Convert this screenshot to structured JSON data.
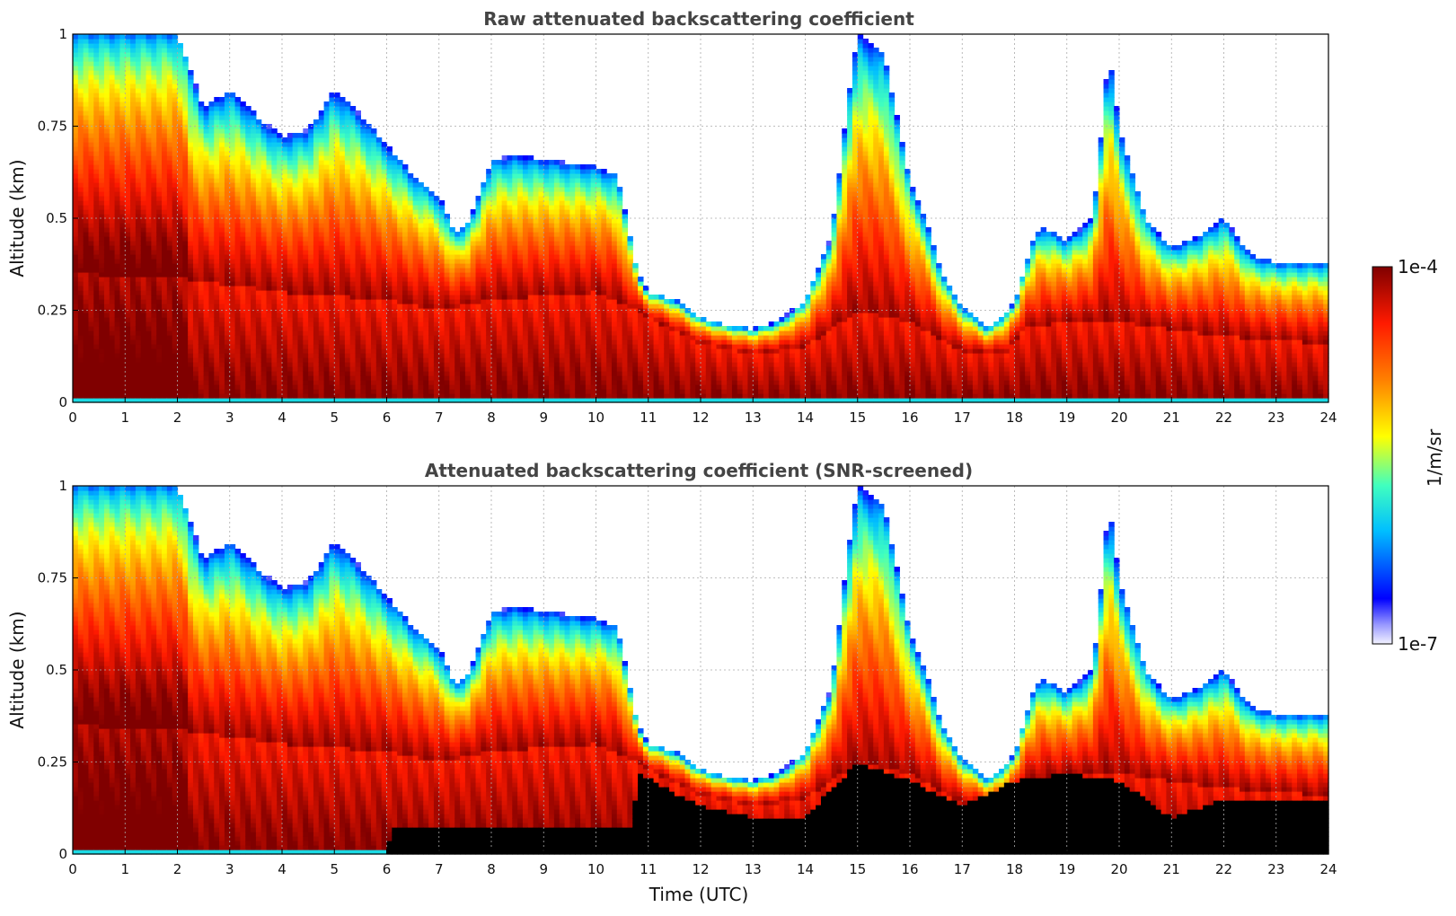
{
  "chart_data": [
    {
      "type": "heatmap",
      "title": "Raw attenuated backscattering coefficient",
      "xlabel": "",
      "ylabel": "Altitude (km)",
      "xlim": [
        0,
        24
      ],
      "ylim": [
        0,
        1
      ],
      "x_ticks": [
        "0",
        "1",
        "2",
        "3",
        "4",
        "5",
        "6",
        "7",
        "8",
        "9",
        "10",
        "11",
        "12",
        "13",
        "14",
        "15",
        "16",
        "17",
        "18",
        "19",
        "20",
        "21",
        "22",
        "23",
        "24"
      ],
      "y_ticks": [
        "0",
        "0.25",
        "0.5",
        "0.75",
        "1"
      ],
      "grid": true,
      "colormap": "jet",
      "color_scale": "log",
      "masked": false,
      "bl_top_km": [
        [
          0,
          1.0
        ],
        [
          1,
          1.0
        ],
        [
          2,
          1.0
        ],
        [
          2.5,
          0.8
        ],
        [
          3,
          0.85
        ],
        [
          3.5,
          0.78
        ],
        [
          4,
          0.72
        ],
        [
          4.5,
          0.74
        ],
        [
          5,
          0.85
        ],
        [
          5.5,
          0.78
        ],
        [
          6,
          0.7
        ],
        [
          6.5,
          0.62
        ],
        [
          7,
          0.56
        ],
        [
          7.3,
          0.46
        ],
        [
          7.6,
          0.5
        ],
        [
          8,
          0.66
        ],
        [
          8.5,
          0.67
        ],
        [
          9,
          0.66
        ],
        [
          9.5,
          0.65
        ],
        [
          10,
          0.64
        ],
        [
          10.4,
          0.62
        ],
        [
          10.8,
          0.35
        ],
        [
          11,
          0.3
        ],
        [
          11.5,
          0.28
        ],
        [
          12,
          0.23
        ],
        [
          12.5,
          0.21
        ],
        [
          13,
          0.2
        ],
        [
          13.5,
          0.22
        ],
        [
          14,
          0.28
        ],
        [
          14.5,
          0.45
        ],
        [
          14.8,
          0.8
        ],
        [
          15,
          1.0
        ],
        [
          15.5,
          0.95
        ],
        [
          16,
          0.6
        ],
        [
          16.3,
          0.5
        ],
        [
          16.6,
          0.35
        ],
        [
          17,
          0.26
        ],
        [
          17.5,
          0.2
        ],
        [
          18,
          0.27
        ],
        [
          18.3,
          0.42
        ],
        [
          18.5,
          0.48
        ],
        [
          19,
          0.44
        ],
        [
          19.5,
          0.5
        ],
        [
          19.8,
          0.95
        ],
        [
          20,
          0.75
        ],
        [
          20.5,
          0.5
        ],
        [
          21,
          0.42
        ],
        [
          21.5,
          0.45
        ],
        [
          22,
          0.5
        ],
        [
          22.5,
          0.4
        ],
        [
          23,
          0.38
        ],
        [
          24,
          0.38
        ]
      ],
      "dense_top_km": [
        [
          0,
          0.35
        ],
        [
          2,
          0.34
        ],
        [
          4,
          0.3
        ],
        [
          6,
          0.28
        ],
        [
          7,
          0.25
        ],
        [
          8,
          0.28
        ],
        [
          10,
          0.3
        ],
        [
          10.8,
          0.25
        ],
        [
          11,
          0.23
        ],
        [
          12,
          0.16
        ],
        [
          13,
          0.13
        ],
        [
          14,
          0.15
        ],
        [
          15,
          0.25
        ],
        [
          16,
          0.22
        ],
        [
          17,
          0.14
        ],
        [
          17.8,
          0.13
        ],
        [
          18.2,
          0.2
        ],
        [
          19,
          0.22
        ],
        [
          20,
          0.22
        ],
        [
          21,
          0.2
        ],
        [
          22,
          0.18
        ],
        [
          24,
          0.16
        ]
      ]
    },
    {
      "type": "heatmap",
      "title": "Attenuated backscattering coefficient (SNR-screened)",
      "xlabel": "Time (UTC)",
      "ylabel": "Altitude (km)",
      "xlim": [
        0,
        24
      ],
      "ylim": [
        0,
        1
      ],
      "x_ticks": [
        "0",
        "1",
        "2",
        "3",
        "4",
        "5",
        "6",
        "7",
        "8",
        "9",
        "10",
        "11",
        "12",
        "13",
        "14",
        "15",
        "16",
        "17",
        "18",
        "19",
        "20",
        "21",
        "22",
        "23",
        "24"
      ],
      "y_ticks": [
        "0",
        "0.25",
        "0.5",
        "0.75",
        "1"
      ],
      "grid": true,
      "colormap": "jet",
      "color_scale": "log",
      "masked": true,
      "mask_color": "#000000",
      "bl_top_km": [
        [
          0,
          1.0
        ],
        [
          1,
          1.0
        ],
        [
          2,
          1.0
        ],
        [
          2.5,
          0.8
        ],
        [
          3,
          0.85
        ],
        [
          3.5,
          0.78
        ],
        [
          4,
          0.72
        ],
        [
          4.5,
          0.74
        ],
        [
          5,
          0.85
        ],
        [
          5.5,
          0.78
        ],
        [
          6,
          0.7
        ],
        [
          6.5,
          0.62
        ],
        [
          7,
          0.56
        ],
        [
          7.3,
          0.46
        ],
        [
          7.6,
          0.5
        ],
        [
          8,
          0.66
        ],
        [
          8.5,
          0.67
        ],
        [
          9,
          0.66
        ],
        [
          9.5,
          0.65
        ],
        [
          10,
          0.64
        ],
        [
          10.4,
          0.62
        ],
        [
          10.8,
          0.35
        ],
        [
          11,
          0.3
        ],
        [
          11.5,
          0.28
        ],
        [
          12,
          0.23
        ],
        [
          12.5,
          0.21
        ],
        [
          13,
          0.2
        ],
        [
          13.5,
          0.22
        ],
        [
          14,
          0.28
        ],
        [
          14.5,
          0.45
        ],
        [
          14.8,
          0.8
        ],
        [
          15,
          1.0
        ],
        [
          15.5,
          0.95
        ],
        [
          16,
          0.6
        ],
        [
          16.3,
          0.5
        ],
        [
          16.6,
          0.35
        ],
        [
          17,
          0.26
        ],
        [
          17.5,
          0.2
        ],
        [
          18,
          0.27
        ],
        [
          18.3,
          0.42
        ],
        [
          18.5,
          0.48
        ],
        [
          19,
          0.44
        ],
        [
          19.5,
          0.5
        ],
        [
          19.8,
          0.95
        ],
        [
          20,
          0.75
        ],
        [
          20.5,
          0.5
        ],
        [
          21,
          0.42
        ],
        [
          21.5,
          0.45
        ],
        [
          22,
          0.5
        ],
        [
          22.5,
          0.4
        ],
        [
          23,
          0.38
        ],
        [
          24,
          0.38
        ]
      ],
      "dense_top_km": [
        [
          0,
          0.35
        ],
        [
          2,
          0.34
        ],
        [
          4,
          0.3
        ],
        [
          6,
          0.28
        ],
        [
          7,
          0.25
        ],
        [
          8,
          0.28
        ],
        [
          10,
          0.3
        ],
        [
          10.8,
          0.25
        ],
        [
          11,
          0.23
        ],
        [
          12,
          0.16
        ],
        [
          13,
          0.13
        ],
        [
          14,
          0.15
        ],
        [
          15,
          0.25
        ],
        [
          16,
          0.22
        ],
        [
          17,
          0.14
        ],
        [
          17.8,
          0.13
        ],
        [
          18.2,
          0.2
        ],
        [
          19,
          0.22
        ],
        [
          20,
          0.22
        ],
        [
          21,
          0.2
        ],
        [
          22,
          0.18
        ],
        [
          24,
          0.16
        ]
      ],
      "mask_top_km": [
        [
          0,
          0
        ],
        [
          6,
          0
        ],
        [
          6.1,
          0.07
        ],
        [
          10.7,
          0.07
        ],
        [
          10.8,
          0.22
        ],
        [
          12,
          0.13
        ],
        [
          13,
          0.1
        ],
        [
          14,
          0.1
        ],
        [
          15,
          0.25
        ],
        [
          16,
          0.2
        ],
        [
          17,
          0.13
        ],
        [
          18,
          0.2
        ],
        [
          19,
          0.22
        ],
        [
          20,
          0.2
        ],
        [
          20.5,
          0.15
        ],
        [
          21,
          0.1
        ],
        [
          22,
          0.15
        ],
        [
          24,
          0.15
        ]
      ]
    }
  ],
  "colorbar": {
    "label": "1/m/sr",
    "max_label": "1e-4",
    "min_label": "1e-7"
  }
}
